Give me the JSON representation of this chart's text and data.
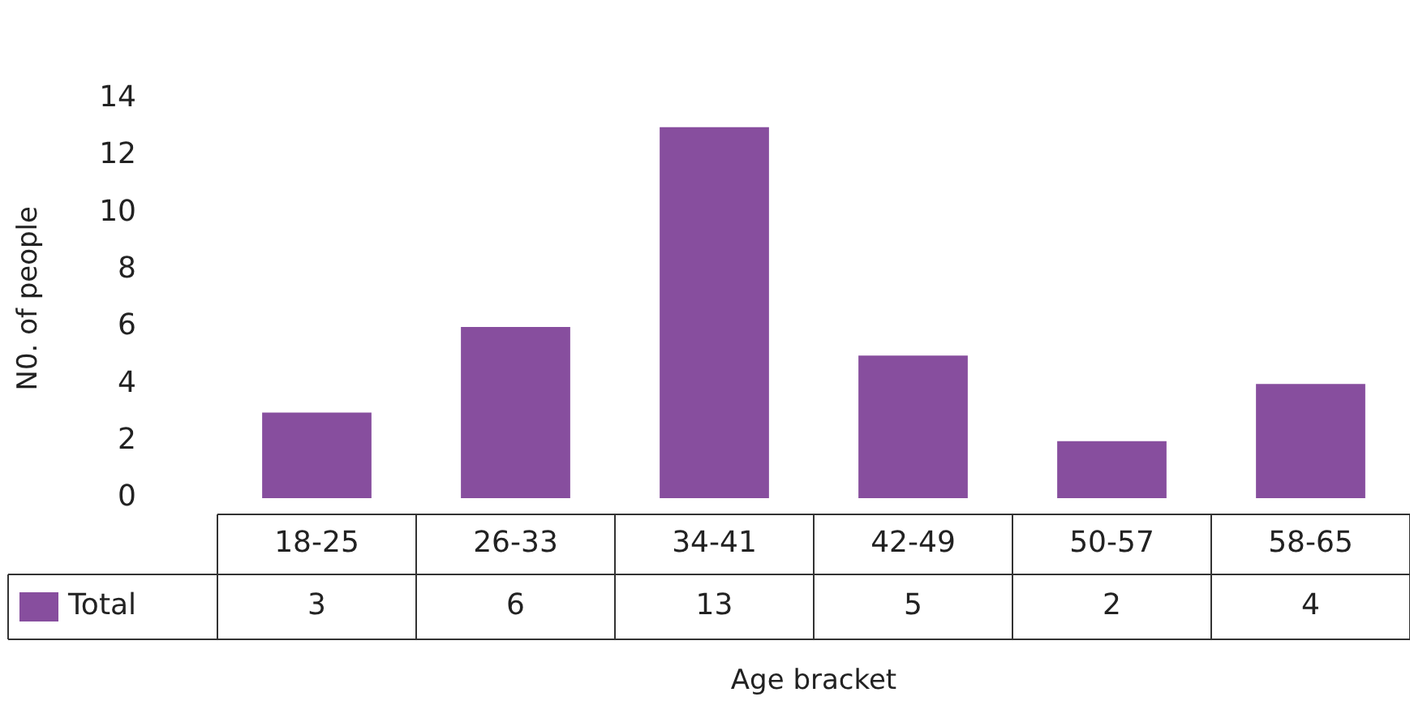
{
  "chart_data": {
    "type": "bar",
    "xlabel": "Age bracket",
    "ylabel": "N0. of people",
    "categories": [
      "18-25",
      "26-33",
      "34-41",
      "42-49",
      "50-57",
      "58-65"
    ],
    "series": [
      {
        "name": "Total",
        "color": "#874e9e",
        "values": [
          3,
          6,
          13,
          5,
          2,
          4
        ]
      }
    ],
    "ylim": [
      0,
      14
    ],
    "yticks": [
      0,
      2,
      4,
      6,
      8,
      10,
      12,
      14
    ],
    "grid": false,
    "data_labels": true
  }
}
